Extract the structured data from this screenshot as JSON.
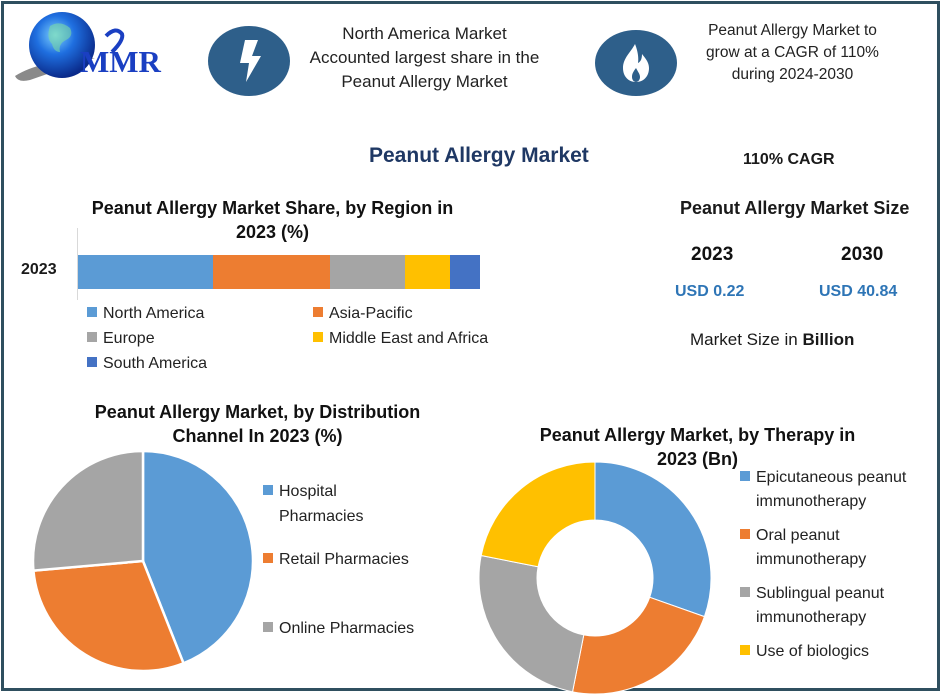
{
  "header": {
    "logo_text": "MMR",
    "callout_1": {
      "icon": "lightning-bolt-icon",
      "lines": [
        "North America Market",
        "Accounted largest share in the",
        "Peanut Allergy Market"
      ]
    },
    "callout_2": {
      "icon": "flame-icon",
      "lines": [
        "Peanut Allergy Market to",
        "grow at a CAGR of 110%",
        "during 2024-2030"
      ]
    },
    "icon_bg_color": "#2e5f8a"
  },
  "main_title": "Peanut Allergy Market",
  "market_size": {
    "cagr": "110% CAGR",
    "title": "Peanut Allergy Market Size",
    "years": [
      {
        "year": "2023",
        "value": "USD 0.22"
      },
      {
        "year": "2030",
        "value": "USD 40.84"
      }
    ],
    "unit_prefix": "Market Size in ",
    "unit_bold": "Billion"
  },
  "chart_data": [
    {
      "type": "bar",
      "orientation": "horizontal-stacked",
      "title": "Peanut Allergy Market Share, by Region in 2023 (%)",
      "categories": [
        "2023"
      ],
      "series": [
        {
          "name": "North America",
          "values": [
            33.5
          ],
          "color": "#5b9bd5"
        },
        {
          "name": "Asia-Pacific",
          "values": [
            29.3
          ],
          "color": "#ed7d31"
        },
        {
          "name": "Europe",
          "values": [
            18.6
          ],
          "color": "#a5a5a5"
        },
        {
          "name": "Middle East and Africa",
          "values": [
            11.2
          ],
          "color": "#ffc000"
        },
        {
          "name": "South America",
          "values": [
            7.4
          ],
          "color": "#4472c4"
        }
      ],
      "xlabel": "",
      "ylabel": "",
      "legend_position": "bottom",
      "grid": false
    },
    {
      "type": "pie",
      "title": "Peanut Allergy Market, by Distribution Channel In 2023 (%)",
      "categories": [
        "Hospital Pharmacies",
        "Retail Pharmacies",
        "Online Pharmacies"
      ],
      "values": [
        44.0,
        29.6,
        26.4
      ],
      "colors": [
        "#5b9bd5",
        "#ed7d31",
        "#a5a5a5"
      ],
      "legend_position": "right"
    },
    {
      "type": "pie",
      "subtype": "donut",
      "title": "Peanut Allergy Market, by Therapy in 2023 (Bn)",
      "categories": [
        "Epicutaneous peanut immunotherapy",
        "Oral peanut immunotherapy",
        "Sublingual peanut immunotherapy",
        "Use of biologics"
      ],
      "values": [
        30.4,
        22.7,
        25.0,
        21.9
      ],
      "colors": [
        "#5b9bd5",
        "#ed7d31",
        "#a5a5a5",
        "#ffc000"
      ],
      "legend_position": "right"
    }
  ],
  "region_chart": {
    "title_line1": "Peanut Allergy Market Share, by Region in",
    "title_line2": "2023 (%)",
    "category_label": "2023",
    "legend": [
      "North America",
      "Asia-Pacific",
      "Europe",
      "Middle East and Africa",
      "South America"
    ]
  },
  "distribution_chart": {
    "title_line1": "Peanut Allergy Market, by Distribution",
    "title_line2": "Channel In 2023 (%)",
    "legend": [
      {
        "line1": "Hospital",
        "line2": "Pharmacies"
      },
      {
        "line1": "Retail Pharmacies",
        "line2": ""
      },
      {
        "line1": "Online Pharmacies",
        "line2": ""
      }
    ]
  },
  "therapy_chart": {
    "title_line1": "Peanut Allergy Market, by Therapy in",
    "title_line2": "2023 (Bn)",
    "legend": [
      {
        "line1": "Epicutaneous peanut",
        "line2": "immunotherapy"
      },
      {
        "line1": "Oral peanut",
        "line2": "immunotherapy"
      },
      {
        "line1": "Sublingual peanut",
        "line2": "immunotherapy"
      },
      {
        "line1": "Use of biologics",
        "line2": ""
      }
    ]
  }
}
